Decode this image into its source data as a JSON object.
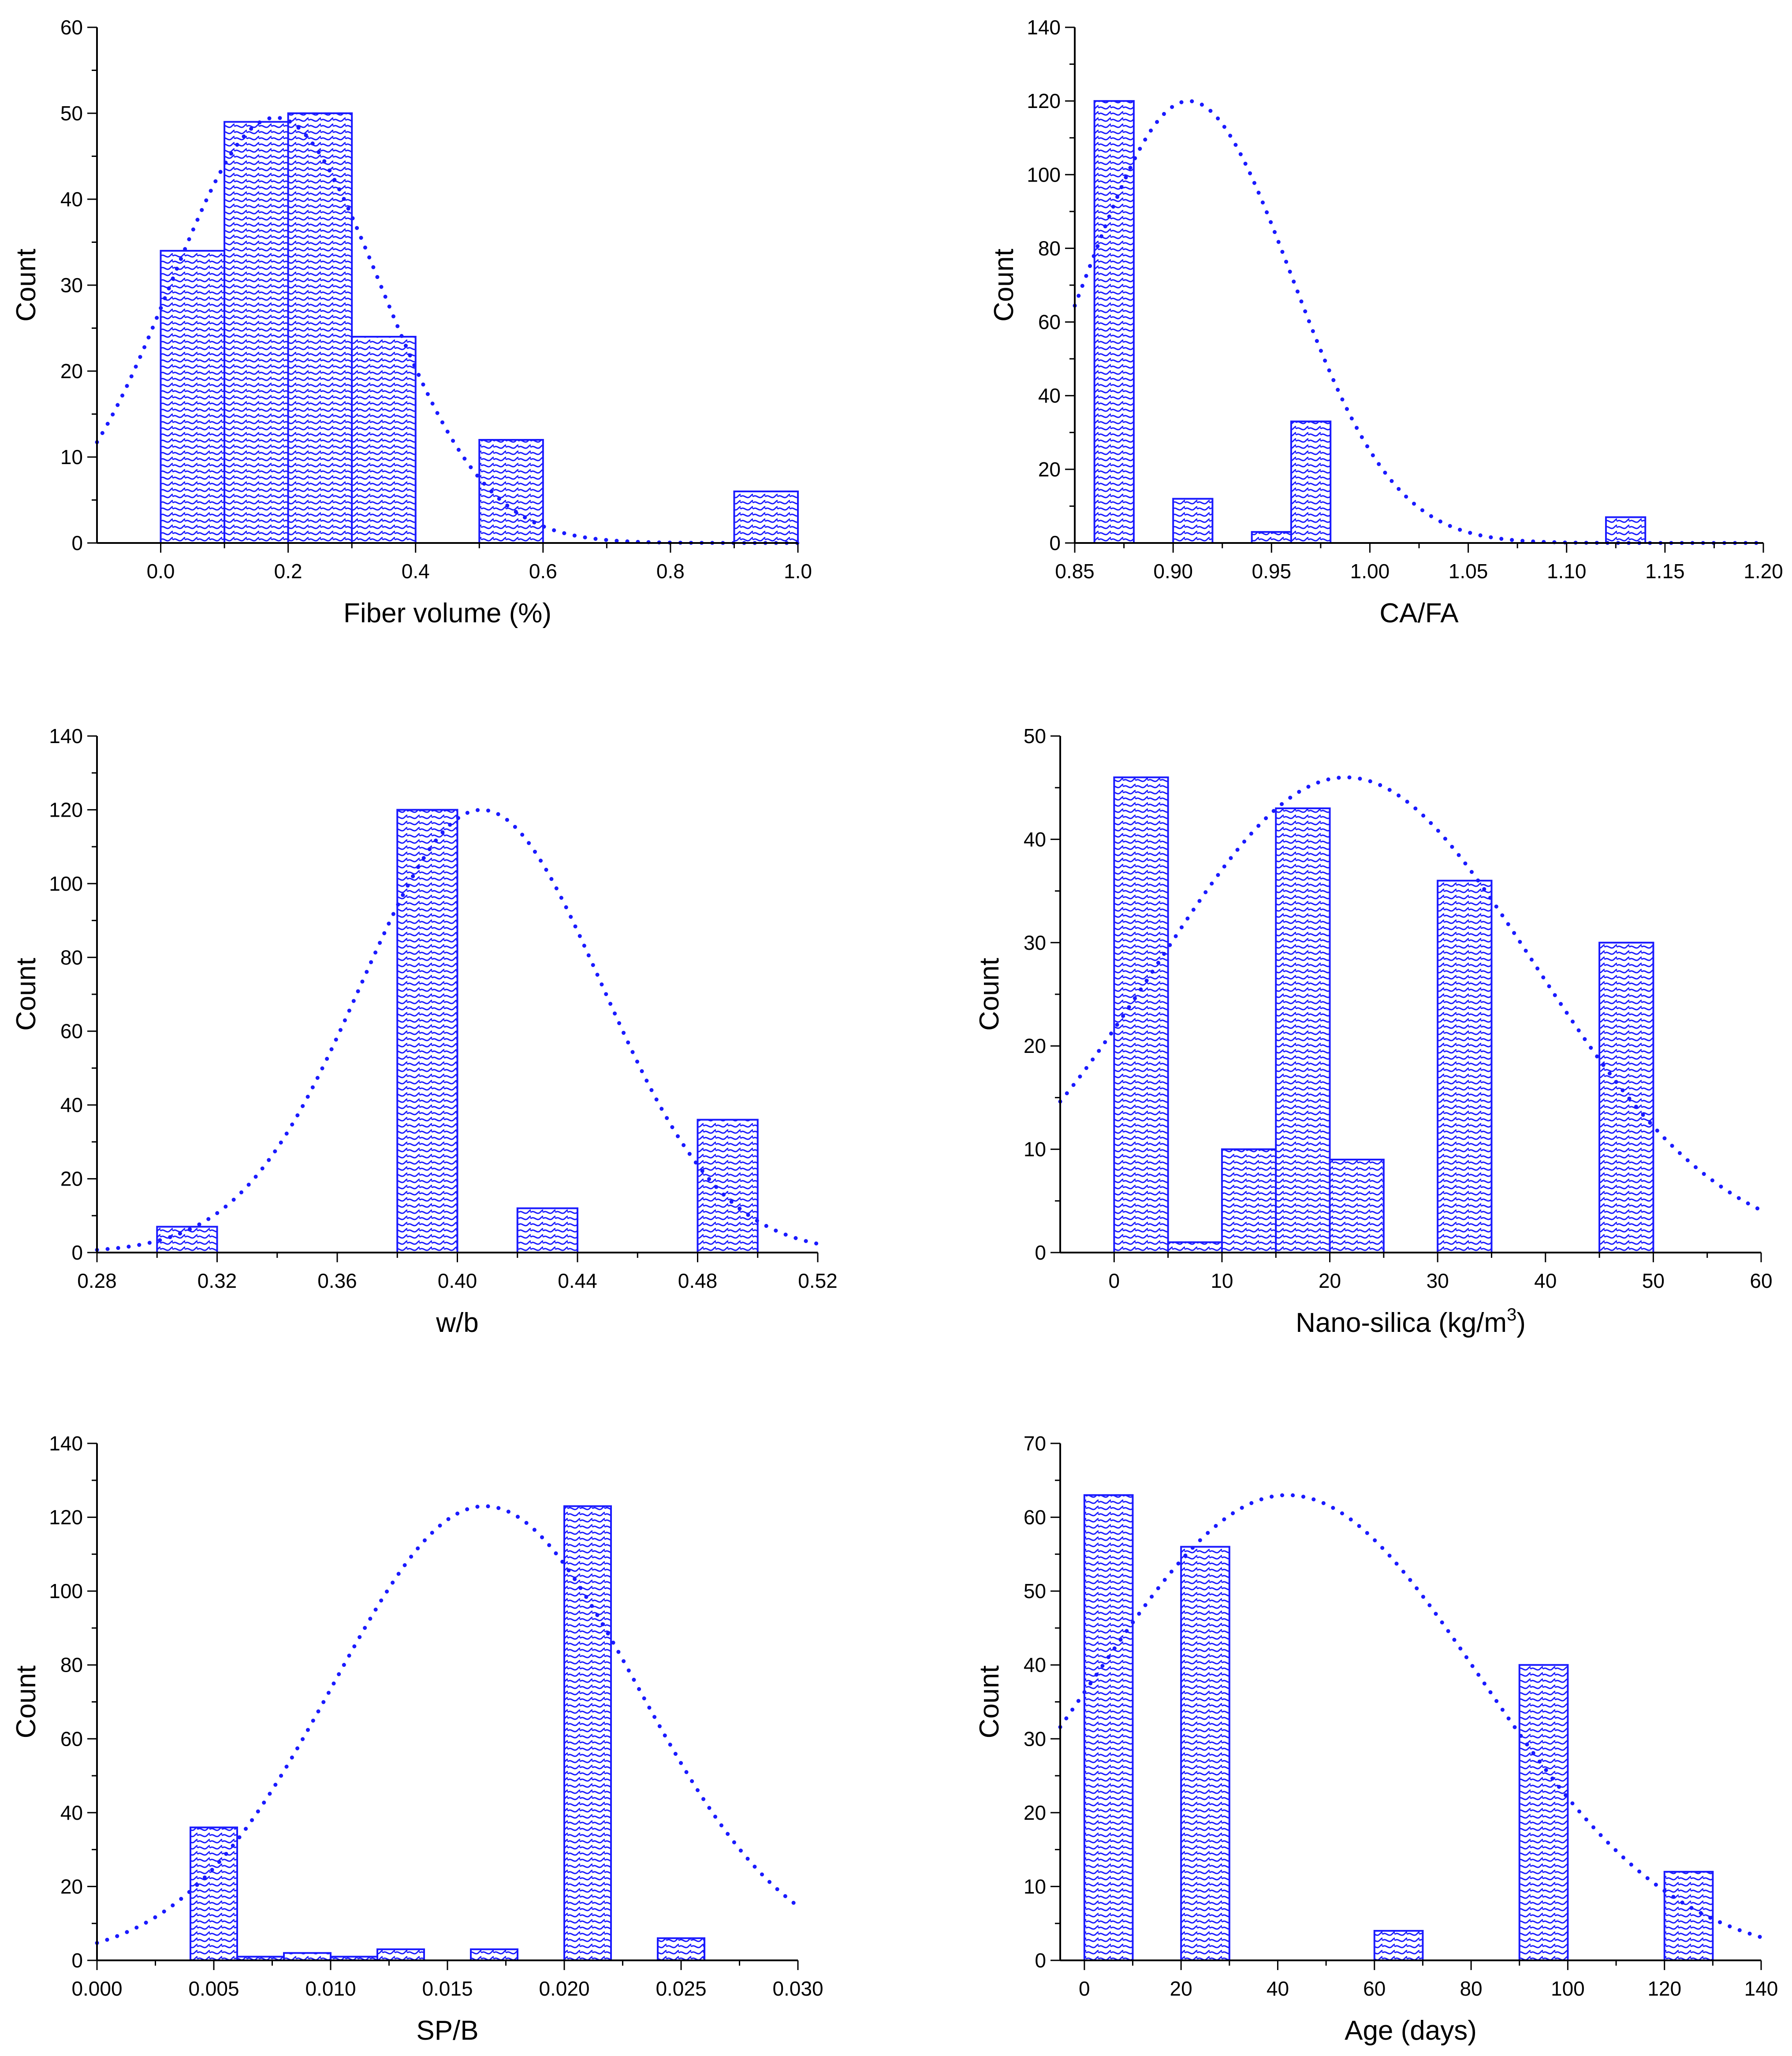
{
  "chart_data": [
    {
      "type": "bar",
      "xlabel": "Fiber volume (%)",
      "ylabel": "Count",
      "xlim": [
        -0.1,
        1.0
      ],
      "ylim": [
        0,
        60
      ],
      "xticks": [
        0.0,
        0.2,
        0.4,
        0.6,
        0.8,
        1.0
      ],
      "xtick_labels": [
        "0.0",
        "0.2",
        "0.4",
        "0.6",
        "0.8",
        "1.0"
      ],
      "yticks": [
        0,
        10,
        20,
        30,
        40,
        50,
        60
      ],
      "ytick_labels": [
        "0",
        "10",
        "20",
        "30",
        "40",
        "50",
        "60"
      ],
      "bins": [
        [
          0.0,
          0.1
        ],
        [
          0.1,
          0.2
        ],
        [
          0.2,
          0.3
        ],
        [
          0.3,
          0.4
        ],
        [
          0.5,
          0.6
        ],
        [
          0.9,
          1.0
        ]
      ],
      "values": [
        34,
        49,
        50,
        24,
        12,
        6
      ],
      "fit": {
        "type": "normal",
        "mean": 0.18,
        "sd": 0.165,
        "peak": 49.5
      }
    },
    {
      "type": "bar",
      "xlabel": "CA/FA",
      "ylabel": "Count",
      "xlim": [
        0.85,
        1.2
      ],
      "ylim": [
        0,
        140
      ],
      "xticks": [
        0.85,
        0.9,
        0.95,
        1.0,
        1.05,
        1.1,
        1.15,
        1.2
      ],
      "xtick_labels": [
        "0.85",
        "0.90",
        "0.95",
        "1.00",
        "1.05",
        "1.10",
        "1.15",
        "1.20"
      ],
      "yticks": [
        0,
        20,
        40,
        60,
        80,
        100,
        120,
        140
      ],
      "ytick_labels": [
        "0",
        "20",
        "40",
        "60",
        "80",
        "100",
        "120",
        "140"
      ],
      "bins": [
        [
          0.86,
          0.88
        ],
        [
          0.9,
          0.92
        ],
        [
          0.94,
          0.96
        ],
        [
          0.96,
          0.98
        ],
        [
          1.12,
          1.14
        ]
      ],
      "values": [
        120,
        12,
        3,
        33,
        7
      ],
      "fit": {
        "type": "normal",
        "mean": 0.908,
        "sd": 0.052,
        "peak": 120
      }
    },
    {
      "type": "bar",
      "xlabel": "w/b",
      "ylabel": "Count",
      "xlim": [
        0.28,
        0.52
      ],
      "ylim": [
        0,
        140
      ],
      "xticks": [
        0.28,
        0.32,
        0.36,
        0.4,
        0.44,
        0.48,
        0.52
      ],
      "xtick_labels": [
        "0.28",
        "0.32",
        "0.36",
        "0.40",
        "0.44",
        "0.48",
        "0.52"
      ],
      "yticks": [
        0,
        20,
        40,
        60,
        80,
        100,
        120,
        140
      ],
      "ytick_labels": [
        "0",
        "20",
        "40",
        "60",
        "80",
        "100",
        "120",
        "140"
      ],
      "bins": [
        [
          0.3,
          0.32
        ],
        [
          0.38,
          0.4
        ],
        [
          0.42,
          0.44
        ],
        [
          0.48,
          0.5
        ]
      ],
      "values": [
        7,
        120,
        12,
        36
      ],
      "fit": {
        "type": "normal",
        "mean": 0.408,
        "sd": 0.04,
        "peak": 120
      }
    },
    {
      "type": "bar",
      "xlabel": "Nano-silica (kg/m",
      "xlabel_sup": "3",
      "xlabel_suffix": ")",
      "ylabel": "Count",
      "xlim": [
        -5,
        60
      ],
      "ylim": [
        0,
        50
      ],
      "xticks": [
        0,
        10,
        20,
        30,
        40,
        50,
        60
      ],
      "xtick_labels": [
        "0",
        "10",
        "20",
        "30",
        "40",
        "50",
        "60"
      ],
      "yticks": [
        0,
        10,
        20,
        30,
        40,
        50
      ],
      "ytick_labels": [
        "0",
        "10",
        "20",
        "30",
        "40",
        "50"
      ],
      "bins": [
        [
          0,
          5
        ],
        [
          5,
          10
        ],
        [
          10,
          15
        ],
        [
          15,
          20
        ],
        [
          20,
          25
        ],
        [
          30,
          35
        ],
        [
          45,
          50
        ]
      ],
      "values": [
        46,
        1,
        10,
        43,
        9,
        36,
        30
      ],
      "fit": {
        "type": "normal",
        "mean": 21.5,
        "sd": 17.5,
        "peak": 46
      }
    },
    {
      "type": "bar",
      "xlabel": "SP/B",
      "ylabel": "Count",
      "xlim": [
        0.0,
        0.03
      ],
      "ylim": [
        0,
        140
      ],
      "xticks": [
        0.0,
        0.005,
        0.01,
        0.015,
        0.02,
        0.025,
        0.03
      ],
      "xtick_labels": [
        "0.000",
        "0.005",
        "0.010",
        "0.015",
        "0.020",
        "0.025",
        "0.030"
      ],
      "yticks": [
        0,
        20,
        40,
        60,
        80,
        100,
        120,
        140
      ],
      "ytick_labels": [
        "0",
        "20",
        "40",
        "60",
        "80",
        "100",
        "120",
        "140"
      ],
      "bins": [
        [
          0.004,
          0.006
        ],
        [
          0.006,
          0.008
        ],
        [
          0.008,
          0.01
        ],
        [
          0.01,
          0.012
        ],
        [
          0.012,
          0.014
        ],
        [
          0.016,
          0.018
        ],
        [
          0.02,
          0.022
        ],
        [
          0.024,
          0.026
        ]
      ],
      "values": [
        36,
        1,
        2,
        1,
        3,
        3,
        123,
        6
      ],
      "fit": {
        "type": "normal",
        "mean": 0.0166,
        "sd": 0.0065,
        "peak": 123
      }
    },
    {
      "type": "bar",
      "xlabel": "Age (days)",
      "ylabel": "Count",
      "xlim": [
        -5,
        140
      ],
      "ylim": [
        0,
        70
      ],
      "xticks": [
        0,
        20,
        40,
        60,
        80,
        100,
        120,
        140
      ],
      "xtick_labels": [
        "0",
        "20",
        "40",
        "60",
        "80",
        "100",
        "120",
        "140"
      ],
      "yticks": [
        0,
        10,
        20,
        30,
        40,
        50,
        60,
        70
      ],
      "ytick_labels": [
        "0",
        "10",
        "20",
        "30",
        "40",
        "50",
        "60",
        "70"
      ],
      "bins": [
        [
          0,
          10
        ],
        [
          20,
          30
        ],
        [
          60,
          70
        ],
        [
          90,
          100
        ],
        [
          120,
          130
        ]
      ],
      "values": [
        63,
        56,
        4,
        40,
        12
      ],
      "fit": {
        "type": "normal",
        "mean": 42,
        "sd": 40,
        "peak": 63
      }
    }
  ]
}
